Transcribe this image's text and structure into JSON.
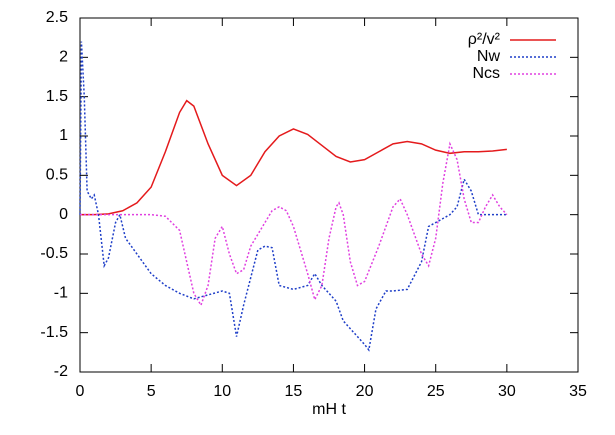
{
  "chart_data": {
    "type": "line",
    "x_label": "mH t",
    "xlim": [
      0,
      35
    ],
    "xticks": [
      0,
      5,
      10,
      15,
      20,
      25,
      30,
      35
    ],
    "ylim": [
      -2,
      2.5
    ],
    "yticks": [
      -2,
      -1.5,
      -1,
      -0.5,
      0,
      0.5,
      1,
      1.5,
      2,
      2.5
    ],
    "grid": false,
    "legend": "top-right",
    "series": [
      {
        "name": "ρ²/v²",
        "color": "#e41a1c",
        "dash": "solid",
        "x": [
          0,
          1,
          2,
          3,
          4,
          5,
          6,
          7,
          7.5,
          8,
          9,
          10,
          11,
          12,
          13,
          14,
          15,
          16,
          17,
          18,
          19,
          20,
          21,
          22,
          23,
          24,
          25,
          26,
          27,
          28,
          29,
          30
        ],
        "values": [
          0,
          0,
          0.01,
          0.05,
          0.15,
          0.35,
          0.8,
          1.3,
          1.45,
          1.38,
          0.9,
          0.5,
          0.37,
          0.5,
          0.8,
          1.0,
          1.09,
          1.02,
          0.88,
          0.74,
          0.67,
          0.7,
          0.8,
          0.9,
          0.93,
          0.9,
          0.82,
          0.78,
          0.8,
          0.8,
          0.81,
          0.83
        ]
      },
      {
        "name": "Nw",
        "color": "#1f3fc8",
        "dash": "dotted",
        "x": [
          0,
          0.1,
          0.3,
          0.5,
          0.8,
          1,
          1.3,
          1.7,
          2,
          2.5,
          2.8,
          3.2,
          4,
          5,
          6,
          7,
          8,
          9,
          10,
          10.5,
          11,
          11.5,
          12,
          12.5,
          13,
          13.5,
          14,
          15,
          16,
          16.5,
          17,
          17.5,
          18,
          18.5,
          19,
          20,
          20.3,
          20.8,
          21.5,
          22,
          23,
          24,
          24.5,
          25,
          26,
          26.5,
          27,
          27.5,
          28,
          29,
          30
        ],
        "values": [
          0,
          2.2,
          1.5,
          0.3,
          0.2,
          0.25,
          0,
          -0.65,
          -0.55,
          -0.1,
          0,
          -0.3,
          -0.5,
          -0.75,
          -0.9,
          -1.0,
          -1.07,
          -1.02,
          -0.97,
          -1.0,
          -1.55,
          -1.15,
          -0.8,
          -0.45,
          -0.4,
          -0.42,
          -0.9,
          -0.95,
          -0.9,
          -0.75,
          -0.9,
          -1.0,
          -1.1,
          -1.35,
          -1.45,
          -1.65,
          -1.72,
          -1.2,
          -0.97,
          -0.97,
          -0.95,
          -0.6,
          -0.15,
          -0.1,
          0,
          0.1,
          0.45,
          0.3,
          0,
          0,
          0
        ]
      },
      {
        "name": "Ncs",
        "color": "#e040e0",
        "dash": "dotted",
        "x": [
          0,
          1,
          3,
          5,
          6,
          7,
          7.5,
          8,
          8.5,
          9,
          9.5,
          10,
          10.5,
          11,
          11.5,
          12,
          12.5,
          13,
          13.5,
          14,
          14.5,
          15,
          15.5,
          16,
          16.5,
          17,
          17.5,
          18,
          18.2,
          18.5,
          19,
          19.5,
          20,
          21,
          22,
          22.5,
          23,
          24,
          24.5,
          25,
          25.5,
          26,
          26.5,
          27,
          27.5,
          28,
          28.5,
          29,
          29.5,
          30
        ],
        "values": [
          0,
          0,
          0,
          0,
          -0.02,
          -0.2,
          -0.6,
          -1.0,
          -1.15,
          -0.9,
          -0.3,
          -0.15,
          -0.5,
          -0.75,
          -0.7,
          -0.4,
          -0.25,
          -0.1,
          0.05,
          0.1,
          0.05,
          -0.15,
          -0.45,
          -0.75,
          -1.08,
          -0.9,
          -0.3,
          0.1,
          0.15,
          0,
          -0.6,
          -0.9,
          -0.85,
          -0.4,
          0.1,
          0.2,
          0,
          -0.5,
          -0.65,
          -0.3,
          0.4,
          0.9,
          0.7,
          0.2,
          -0.1,
          -0.1,
          0.1,
          0.25,
          0.1,
          0
        ]
      }
    ]
  }
}
